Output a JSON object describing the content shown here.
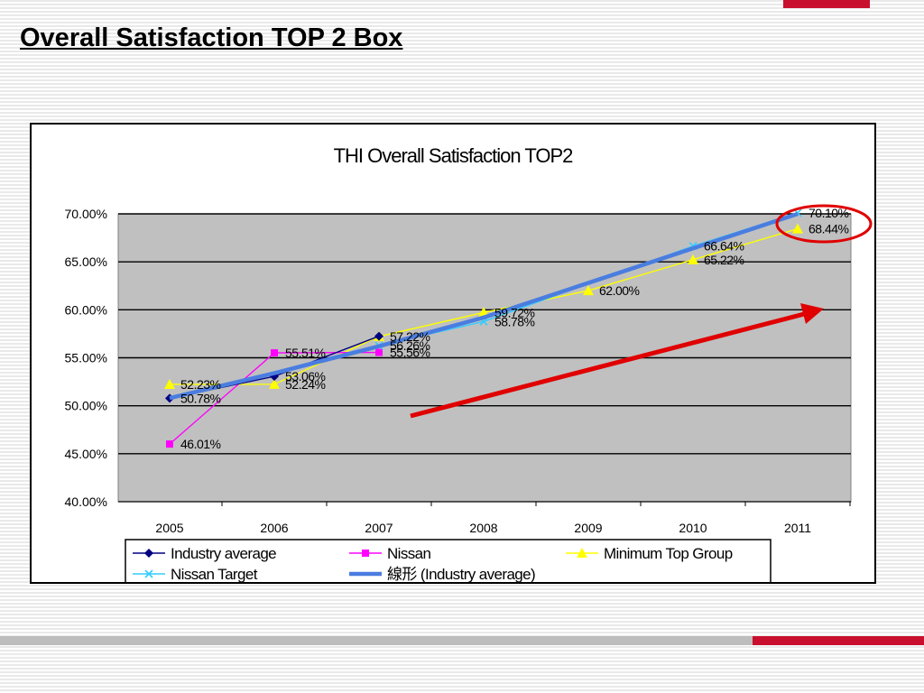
{
  "slide": {
    "title": "Overall Satisfaction TOP 2 Box"
  },
  "colors": {
    "accent_red": "#c8102e",
    "plot_bg": "#c0c0c0"
  },
  "chart_data": {
    "type": "line",
    "title": "THI Overall Satisfaction TOP2",
    "x": [
      "2005",
      "2006",
      "2007",
      "2008",
      "2009",
      "2010",
      "2011"
    ],
    "ylim": [
      40,
      70
    ],
    "yticks": [
      "40.00%",
      "45.00%",
      "50.00%",
      "55.00%",
      "60.00%",
      "65.00%",
      "70.00%"
    ],
    "grid": true,
    "legend_position": "bottom",
    "series": [
      {
        "name": "Industry average",
        "color": "#000080",
        "marker": "diamond",
        "values": [
          50.78,
          53.06,
          57.25,
          null,
          null,
          null,
          null
        ]
      },
      {
        "name": "Nissan",
        "color": "#ff00ff",
        "marker": "square",
        "values": [
          46.01,
          55.51,
          55.56,
          null,
          null,
          null,
          null
        ]
      },
      {
        "name": "Minimum Top Group",
        "color": "#ffff00",
        "marker": "triangle",
        "values": [
          52.23,
          52.24,
          57.22,
          59.72,
          62.0,
          65.22,
          68.44
        ]
      },
      {
        "name": "Nissan Target",
        "color": "#33ccff",
        "marker": "x",
        "values": [
          null,
          null,
          56.26,
          58.78,
          null,
          66.64,
          70.1
        ]
      },
      {
        "name": "線形 (Industry average)",
        "color": "#4a7de0",
        "marker": "none",
        "trendline": true,
        "values": [
          50.8,
          53.4,
          56.2,
          59.2,
          62.8,
          66.4,
          70.0
        ]
      }
    ],
    "data_labels": [
      {
        "text": "52.23%",
        "xi": 0,
        "y": 52.23
      },
      {
        "text": "50.78%",
        "xi": 0,
        "y": 50.78
      },
      {
        "text": "46.01%",
        "xi": 0,
        "y": 46.01
      },
      {
        "text": "55.51%",
        "xi": 1,
        "y": 55.51
      },
      {
        "text": "53.06%",
        "xi": 1,
        "y": 53.06
      },
      {
        "text": "52.24%",
        "xi": 1,
        "y": 52.24
      },
      {
        "text": "56.26%",
        "xi": 2,
        "y": 56.26
      },
      {
        "text": "57.22%",
        "xi": 2,
        "y": 57.22
      },
      {
        "text": "55.56%",
        "xi": 2,
        "y": 55.56
      },
      {
        "text": "58.78%",
        "xi": 3,
        "y": 58.78
      },
      {
        "text": "59.72%",
        "xi": 3,
        "y": 59.72
      },
      {
        "text": "62.00%",
        "xi": 4,
        "y": 62.0
      },
      {
        "text": "66.64%",
        "xi": 5,
        "y": 66.64
      },
      {
        "text": "65.22%",
        "xi": 5,
        "y": 65.22
      },
      {
        "text": "70.10%",
        "xi": 6,
        "y": 70.1
      },
      {
        "text": "68.44%",
        "xi": 6,
        "y": 68.44
      }
    ],
    "annotations": [
      {
        "type": "circle",
        "color": "#e00000",
        "target": "70.10%"
      },
      {
        "type": "arrow",
        "color": "#e00000",
        "meaning": "upward trend"
      }
    ]
  }
}
